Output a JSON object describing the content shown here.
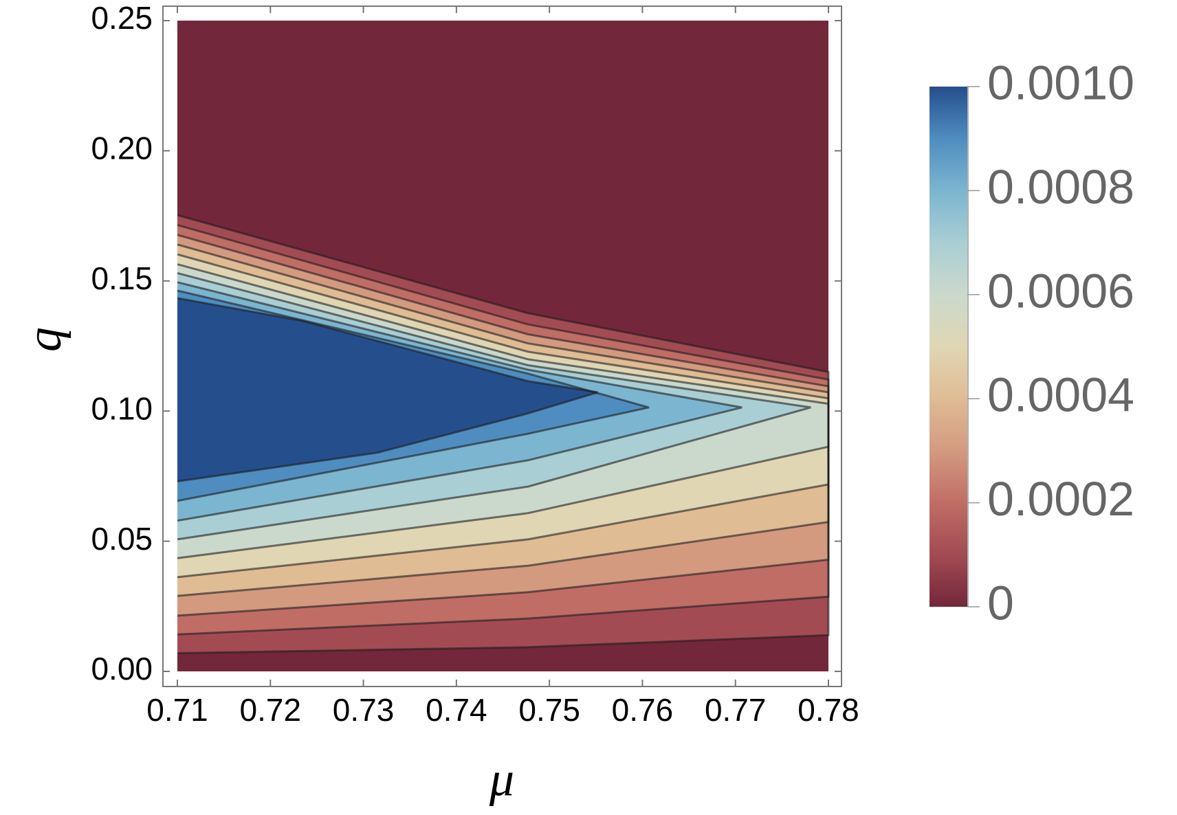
{
  "chart_data": {
    "type": "contour",
    "xlabel": "μ",
    "ylabel": "q",
    "xlim": [
      0.71,
      0.78
    ],
    "ylim": [
      0,
      0.25
    ],
    "xticks": [
      0.71,
      0.72,
      0.73,
      0.74,
      0.75,
      0.76,
      0.77,
      0.78
    ],
    "yticks": [
      {
        "value": 0,
        "label": "0.00"
      },
      0.05,
      {
        "value": 0.1,
        "label": "0.10"
      },
      0.15,
      {
        "value": 0.2,
        "label": "0.20"
      },
      0.25
    ],
    "colors": [
      "#73273a",
      "#a34b53",
      "#c06d66",
      "#d39a80",
      "#dfbc94",
      "#e0d6b4",
      "#cbd9cc",
      "#a9ced4",
      "#7cb5d0",
      "#4f8dc0",
      "#254e8c"
    ],
    "colorbar": {
      "lim": [
        0,
        0.001
      ],
      "ticks": [
        0,
        0.0002,
        0.0004,
        0.0006,
        0.0008,
        {
          "value": 0.001,
          "label": "0.0010"
        }
      ]
    },
    "contours": [
      {
        "level": 0.0001,
        "x": [
          0.71,
          0.7477,
          0.78,
          0.78,
          0.7477,
          0.71
        ],
        "y": [
          0.007,
          0.0093,
          0.0139,
          0.115,
          0.1376,
          0.1753
        ]
      },
      {
        "level": 0.0002,
        "x": [
          0.71,
          0.7477,
          0.78,
          0.78,
          0.7477,
          0.71
        ],
        "y": [
          0.0142,
          0.0203,
          0.0287,
          0.1121,
          0.1333,
          0.1715
        ]
      },
      {
        "level": 0.0003,
        "x": [
          0.71,
          0.7477,
          0.78,
          0.78,
          0.7477,
          0.71
        ],
        "y": [
          0.0214,
          0.0304,
          0.0429,
          0.1095,
          0.1295,
          0.1677
        ]
      },
      {
        "level": 0.0004,
        "x": [
          0.71,
          0.7477,
          0.78,
          0.78,
          0.7477,
          0.71
        ],
        "y": [
          0.029,
          0.0406,
          0.0574,
          0.1072,
          0.126,
          0.164
        ]
      },
      {
        "level": 0.0005,
        "x": [
          0.71,
          0.7477,
          0.78,
          0.78,
          0.7477,
          0.71
        ],
        "y": [
          0.0362,
          0.0507,
          0.0718,
          0.1049,
          0.1228,
          0.1602
        ]
      },
      {
        "level": 0.0006,
        "x": [
          0.71,
          0.7477,
          0.78,
          0.78,
          0.7477,
          0.71
        ],
        "y": [
          0.0435,
          0.0608,
          0.0863,
          0.1028,
          0.1199,
          0.1564
        ]
      },
      {
        "level": 0.0007,
        "x": [
          0.71,
          0.7477,
          0.7781,
          0.7477,
          0.71
        ],
        "y": [
          0.0507,
          0.071,
          0.1014,
          0.1176,
          0.153
        ]
      },
      {
        "level": 0.0008,
        "x": [
          0.71,
          0.7477,
          0.7707,
          0.7477,
          0.71
        ],
        "y": [
          0.0579,
          0.0811,
          0.1014,
          0.1159,
          0.1495
        ]
      },
      {
        "level": 0.0009,
        "x": [
          0.71,
          0.7477,
          0.7607,
          0.7477,
          0.71
        ],
        "y": [
          0.0655,
          0.0913,
          0.1014,
          0.1144,
          0.1463
        ]
      },
      {
        "level": 0.001,
        "x": [
          0.71,
          0.7315,
          0.7477,
          0.7552,
          0.7477,
          0.7234,
          0.71
        ],
        "y": [
          0.073,
          0.084,
          0.0991,
          0.1072,
          0.1115,
          0.1347,
          0.1434
        ]
      }
    ]
  }
}
